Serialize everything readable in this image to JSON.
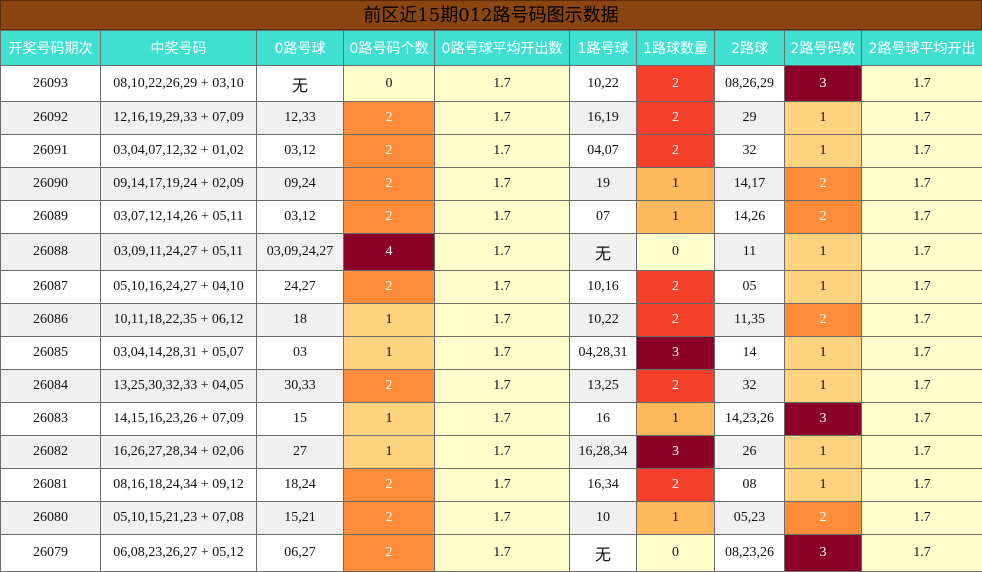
{
  "title": "前区近15期012路号码图示数据",
  "headers": [
    "开奖号码期次",
    "中奖号码",
    "0路号球",
    "0路号码个数",
    "0路号球平均开出数",
    "1路号球",
    "1路球数量",
    "2路球",
    "2路号码数",
    "2路号球平均开出"
  ],
  "rows": [
    {
      "issue": "26093",
      "numbers": "08,10,22,26,29 + 03,10",
      "r0": "无",
      "r0n": "0",
      "r0avg": "1.7",
      "r1": "10,22",
      "r1n": "2",
      "r2": "08,26,29",
      "r2n": "3",
      "r2avg": "1.7"
    },
    {
      "issue": "26092",
      "numbers": "12,16,19,29,33 + 07,09",
      "r0": "12,33",
      "r0n": "2",
      "r0avg": "1.7",
      "r1": "16,19",
      "r1n": "2",
      "r2": "29",
      "r2n": "1",
      "r2avg": "1.7"
    },
    {
      "issue": "26091",
      "numbers": "03,04,07,12,32 + 01,02",
      "r0": "03,12",
      "r0n": "2",
      "r0avg": "1.7",
      "r1": "04,07",
      "r1n": "2",
      "r2": "32",
      "r2n": "1",
      "r2avg": "1.7"
    },
    {
      "issue": "26090",
      "numbers": "09,14,17,19,24 + 02,09",
      "r0": "09,24",
      "r0n": "2",
      "r0avg": "1.7",
      "r1": "19",
      "r1n": "1",
      "r2": "14,17",
      "r2n": "2",
      "r2avg": "1.7"
    },
    {
      "issue": "26089",
      "numbers": "03,07,12,14,26 + 05,11",
      "r0": "03,12",
      "r0n": "2",
      "r0avg": "1.7",
      "r1": "07",
      "r1n": "1",
      "r2": "14,26",
      "r2n": "2",
      "r2avg": "1.7"
    },
    {
      "issue": "26088",
      "numbers": "03,09,11,24,27 + 05,11",
      "r0": "03,09,24,27",
      "r0n": "4",
      "r0avg": "1.7",
      "r1": "无",
      "r1n": "0",
      "r2": "11",
      "r2n": "1",
      "r2avg": "1.7"
    },
    {
      "issue": "26087",
      "numbers": "05,10,16,24,27 + 04,10",
      "r0": "24,27",
      "r0n": "2",
      "r0avg": "1.7",
      "r1": "10,16",
      "r1n": "2",
      "r2": "05",
      "r2n": "1",
      "r2avg": "1.7"
    },
    {
      "issue": "26086",
      "numbers": "10,11,18,22,35 + 06,12",
      "r0": "18",
      "r0n": "1",
      "r0avg": "1.7",
      "r1": "10,22",
      "r1n": "2",
      "r2": "11,35",
      "r2n": "2",
      "r2avg": "1.7"
    },
    {
      "issue": "26085",
      "numbers": "03,04,14,28,31 + 05,07",
      "r0": "03",
      "r0n": "1",
      "r0avg": "1.7",
      "r1": "04,28,31",
      "r1n": "3",
      "r2": "14",
      "r2n": "1",
      "r2avg": "1.7"
    },
    {
      "issue": "26084",
      "numbers": "13,25,30,32,33 + 04,05",
      "r0": "30,33",
      "r0n": "2",
      "r0avg": "1.7",
      "r1": "13,25",
      "r1n": "2",
      "r2": "32",
      "r2n": "1",
      "r2avg": "1.7"
    },
    {
      "issue": "26083",
      "numbers": "14,15,16,23,26 + 07,09",
      "r0": "15",
      "r0n": "1",
      "r0avg": "1.7",
      "r1": "16",
      "r1n": "1",
      "r2": "14,23,26",
      "r2n": "3",
      "r2avg": "1.7"
    },
    {
      "issue": "26082",
      "numbers": "16,26,27,28,34 + 02,06",
      "r0": "27",
      "r0n": "1",
      "r0avg": "1.7",
      "r1": "16,28,34",
      "r1n": "3",
      "r2": "26",
      "r2n": "1",
      "r2avg": "1.7"
    },
    {
      "issue": "26081",
      "numbers": "08,16,18,24,34 + 09,12",
      "r0": "18,24",
      "r0n": "2",
      "r0avg": "1.7",
      "r1": "16,34",
      "r1n": "2",
      "r2": "08",
      "r2n": "1",
      "r2avg": "1.7"
    },
    {
      "issue": "26080",
      "numbers": "05,10,15,21,23 + 07,08",
      "r0": "15,21",
      "r0n": "2",
      "r0avg": "1.7",
      "r1": "10",
      "r1n": "1",
      "r2": "05,23",
      "r2n": "2",
      "r2avg": "1.7"
    },
    {
      "issue": "26079",
      "numbers": "06,08,23,26,27 + 05,12",
      "r0": "06,27",
      "r0n": "2",
      "r0avg": "1.7",
      "r1": "无",
      "r1n": "0",
      "r2": "08,23,26",
      "r2n": "3",
      "r2avg": "1.7"
    }
  ],
  "colors": {
    "title_bg": "#8b4510",
    "header_bg": "#40e0d0",
    "avg_bg": "#ffffcc",
    "count_1": "#ffd280",
    "count_2": "#ff8c3a",
    "count_3": "#8b0029",
    "r1_count_1": "#ffb85c",
    "r1_count_2": "#f4402a"
  }
}
